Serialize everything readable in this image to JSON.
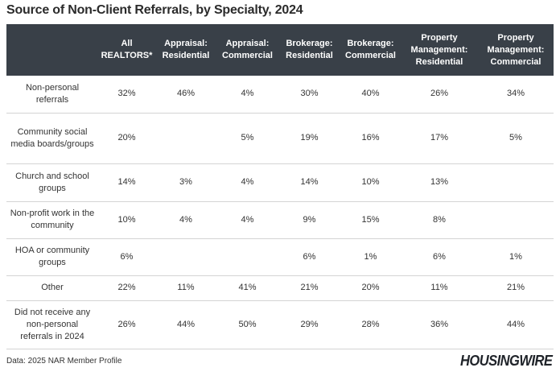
{
  "title": "Source of Non-Client Referrals, by Specialty, 2024",
  "source": "Data: 2025 NAR Member Profile",
  "logo_text": "HOUSINGWIRE",
  "colors": {
    "header_bg": "#394048",
    "header_text": "#ffffff",
    "row_divider": "#d4d4d4"
  },
  "chart_data": {
    "type": "table",
    "title": "Source of Non-Client Referrals, by Specialty, 2024",
    "columns": [
      "",
      "All REALTORS*",
      "Appraisal: Residential",
      "Appraisal: Commercial",
      "Brokerage: Residential",
      "Brokerage: Commercial",
      "Property Management: Residential",
      "Property Management: Commercial"
    ],
    "rows": [
      [
        "Non-personal referrals",
        "32%",
        "46%",
        "4%",
        "30%",
        "40%",
        "26%",
        "34%"
      ],
      [
        "Community social media boards/groups",
        "20%",
        "",
        "5%",
        "19%",
        "16%",
        "17%",
        "5%"
      ],
      [
        "Church and school groups",
        "14%",
        "3%",
        "4%",
        "14%",
        "10%",
        "13%",
        ""
      ],
      [
        "Non-profit work in the community",
        "10%",
        "4%",
        "4%",
        "9%",
        "15%",
        "8%",
        ""
      ],
      [
        "HOA or community groups",
        "6%",
        "",
        "",
        "6%",
        "1%",
        "6%",
        "1%"
      ],
      [
        "Other",
        "22%",
        "11%",
        "41%",
        "21%",
        "20%",
        "11%",
        "21%"
      ],
      [
        "Did not receive any non-personal referrals in 2024",
        "26%",
        "44%",
        "50%",
        "29%",
        "28%",
        "36%",
        "44%"
      ]
    ]
  }
}
